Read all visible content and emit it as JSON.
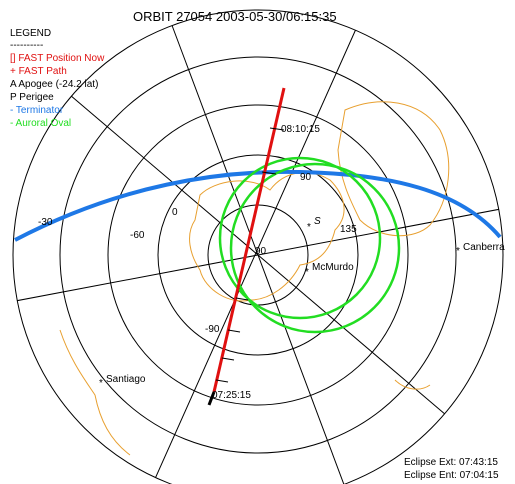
{
  "title": "ORBIT 27054  2003-05-30/06:15:35",
  "legend": {
    "heading": "LEGEND",
    "rule": "----------",
    "items": [
      "[] FAST Position Now",
      "+ FAST Path",
      "A Apogee (-24.2 lat)",
      "P Perigee",
      "- Terminator",
      "- Auroral Oval"
    ]
  },
  "path_labels": [
    "08:10:15",
    "07:25:15"
  ],
  "grid_labels": [
    "90",
    "0",
    "-30",
    "-60",
    "135",
    "-90",
    "90"
  ],
  "places": [
    "S",
    "McMurdo",
    "Canberra",
    "Santiago"
  ],
  "eclipse": [
    "Eclipse Ext: 07:43:15",
    "Eclipse Ent: 07:04:15"
  ]
}
